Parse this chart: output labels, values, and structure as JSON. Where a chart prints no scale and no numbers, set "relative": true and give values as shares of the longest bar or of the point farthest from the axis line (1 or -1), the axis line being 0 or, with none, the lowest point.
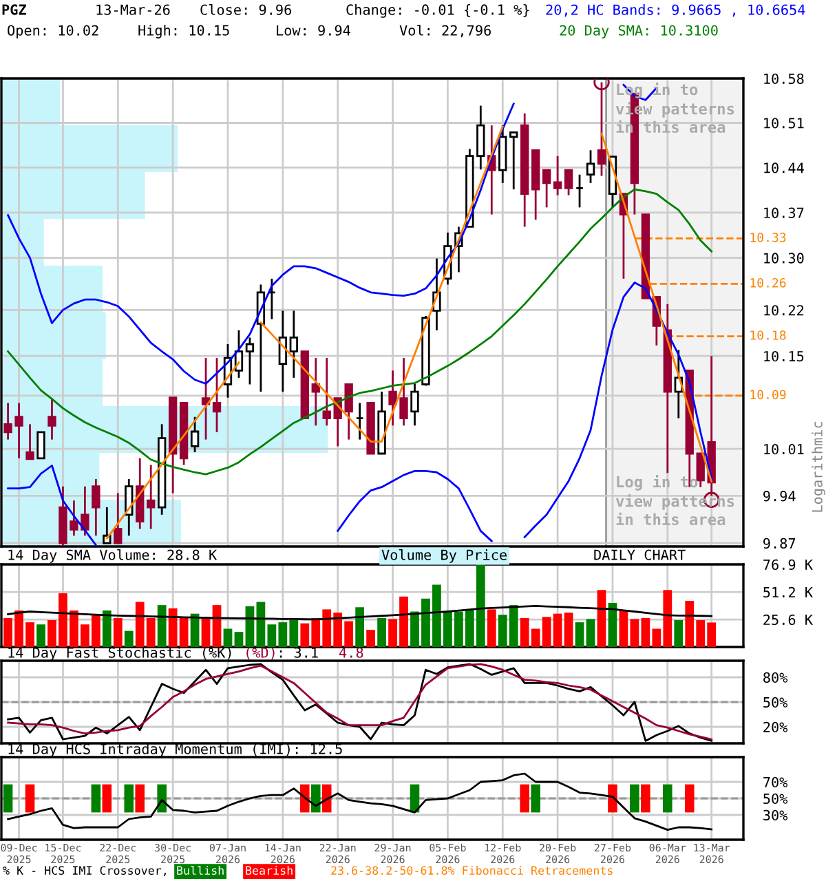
{
  "chart_data": [
    {
      "type": "candlestick",
      "title": "PGZ",
      "ylabel": "Logarithmic",
      "log": true,
      "grid": true,
      "tick_labels": "y",
      "ylim": [
        9.865,
        10.58
      ],
      "yticks": [
        9.87,
        9.94,
        10.01,
        {
          "value": 10.09,
          "label": null
        },
        10.15,
        10.22,
        {
          "value": 10.3,
          "label": "10.30"
        },
        10.37,
        10.44,
        10.51,
        10.58
      ],
      "categories": [
        null,
        null,
        null,
        null,
        null,
        null,
        null,
        null,
        null,
        null,
        null,
        null,
        null,
        null,
        null,
        null,
        null,
        null,
        null,
        null,
        null,
        null,
        null,
        null,
        null,
        null,
        null,
        null,
        null,
        null,
        null,
        null,
        null,
        null,
        null,
        null,
        null,
        null,
        null,
        null,
        null,
        null,
        null,
        null,
        null,
        null,
        null,
        null,
        null,
        null,
        null,
        null,
        null,
        null,
        null,
        null,
        null,
        null,
        null,
        null,
        null,
        null,
        null,
        null,
        null
      ],
      "ohlc": [
        [
          10.047,
          10.079,
          10.024,
          10.035
        ],
        [
          10.058,
          10.079,
          9.996,
          10.045
        ],
        [
          10.005,
          10.047,
          9.995,
          9.995
        ],
        [
          9.996,
          10.035,
          9.996,
          10.035
        ],
        [
          10.058,
          10.086,
          10.024,
          10.045
        ],
        [
          9.923,
          9.954,
          9.866,
          9.87
        ],
        [
          9.902,
          9.933,
          9.881,
          9.89
        ],
        [
          9.912,
          9.954,
          9.881,
          9.89
        ],
        [
          9.954,
          9.965,
          9.881,
          9.923
        ],
        [
          9.87,
          9.923,
          9.87,
          9.881
        ],
        [
          9.891,
          9.944,
          9.87,
          9.87
        ],
        [
          9.912,
          9.965,
          9.881,
          9.954
        ],
        [
          9.954,
          9.996,
          9.891,
          9.902
        ],
        [
          9.933,
          9.986,
          9.891,
          9.923
        ],
        [
          9.923,
          10.047,
          9.912,
          10.026
        ],
        [
          10.087,
          10.087,
          9.944,
          10.003
        ],
        [
          10.079,
          10.079,
          9.986,
          9.996
        ],
        [
          10.014,
          10.058,
          10.005,
          10.036
        ],
        [
          10.086,
          10.147,
          10.024,
          10.077
        ],
        [
          10.079,
          10.147,
          10.035,
          10.066
        ],
        [
          10.107,
          10.168,
          10.087,
          10.147
        ],
        [
          10.128,
          10.189,
          10.117,
          10.157
        ],
        [
          10.157,
          10.178,
          10.107,
          10.168
        ],
        [
          10.199,
          10.259,
          10.096,
          10.247
        ],
        [
          10.247,
          10.268,
          10.206,
          10.247
        ],
        [
          10.138,
          10.219,
          10.096,
          10.178
        ],
        [
          10.157,
          10.219,
          10.117,
          10.178
        ],
        [
          10.157,
          10.157,
          10.056,
          10.056
        ],
        [
          10.107,
          10.147,
          10.045,
          10.096
        ],
        [
          10.066,
          10.147,
          10.045,
          10.056
        ],
        [
          10.086,
          10.086,
          10.014,
          10.056
        ],
        [
          10.107,
          10.107,
          10.024,
          10.066
        ],
        [
          10.056,
          10.079,
          10.024,
          10.056
        ],
        [
          10.079,
          10.079,
          10.003,
          10.003
        ],
        [
          10.003,
          10.096,
          10.003,
          10.066
        ],
        [
          10.096,
          10.128,
          10.045,
          10.077
        ],
        [
          10.086,
          10.147,
          10.045,
          10.056
        ],
        [
          10.066,
          10.108,
          10.045,
          10.096
        ],
        [
          10.107,
          10.211,
          10.105,
          10.208
        ],
        [
          10.219,
          10.299,
          10.189,
          10.247
        ],
        [
          10.268,
          10.339,
          10.259,
          10.318
        ],
        [
          10.318,
          10.348,
          10.278,
          10.338
        ],
        [
          10.348,
          10.469,
          10.348,
          10.458
        ],
        [
          10.458,
          10.537,
          10.437,
          10.506
        ],
        [
          10.458,
          10.506,
          10.367,
          10.436
        ],
        [
          10.436,
          10.506,
          10.416,
          10.488
        ],
        [
          10.488,
          10.495,
          10.406,
          10.495
        ],
        [
          10.506,
          10.525,
          10.348,
          10.399
        ],
        [
          10.467,
          10.467,
          10.359,
          10.406
        ],
        [
          10.436,
          10.436,
          10.378,
          10.416
        ],
        [
          10.417,
          10.458,
          10.397,
          10.408
        ],
        [
          10.436,
          10.436,
          10.397,
          10.408
        ],
        [
          10.408,
          10.429,
          10.378,
          10.408
        ],
        [
          10.429,
          10.467,
          10.416,
          10.446
        ],
        [
          10.467,
          10.574,
          10.427,
          10.446
        ],
        [
          10.399,
          10.457,
          10.378,
          10.457
        ],
        [
          10.399,
          10.399,
          10.268,
          10.367
        ],
        [
          10.556,
          10.556,
          10.367,
          10.416
        ],
        [
          10.367,
          10.367,
          10.238,
          10.238
        ],
        [
          10.24,
          10.24,
          10.166,
          10.196
        ],
        [
          10.189,
          10.229,
          9.974,
          10.096
        ],
        [
          10.096,
          10.159,
          10.056,
          10.117
        ],
        [
          10.128,
          10.128,
          9.953,
          10.003
        ],
        [
          10.003,
          10.003,
          9.953,
          9.963
        ],
        [
          10.02,
          10.15,
          9.94,
          9.96
        ]
      ],
      "colors": [
        "#990033",
        "#990033",
        "#990033",
        "#000000",
        "#990033",
        "#990033",
        "#990033",
        "#990033",
        "#990033",
        "#000000",
        "#990033",
        "#000000",
        "#990033",
        "#990033",
        "#000000",
        "#990033",
        "#990033",
        "#000000",
        "#990033",
        "#990033",
        "#000000",
        "#000000",
        "#000000",
        "#000000",
        "#000000",
        "#000000",
        "#000000",
        "#990033",
        "#990033",
        "#990033",
        "#990033",
        "#990033",
        "#000000",
        "#990033",
        "#000000",
        "#990033",
        "#990033",
        "#000000",
        "#000000",
        "#000000",
        "#000000",
        "#000000",
        "#000000",
        "#000000",
        "#990033",
        "#000000",
        "#000000",
        "#990033",
        "#990033",
        "#990033",
        "#990033",
        "#990033",
        "#000000",
        "#000000",
        "#990033",
        "#000000",
        "#990033",
        "#990033",
        "#990033",
        "#990033",
        "#990033",
        "#000000",
        "#990033",
        "#990033",
        "#990033"
      ],
      "series": [
        {
          "name": "20,2 HC Bands: 9.9665 , 10.6654",
          "type": "line",
          "color": "#0000ff",
          "values": [
            10.366,
            10.33,
            10.3,
            10.245,
            10.2,
            10.22,
            10.23,
            10.236,
            10.236,
            10.232,
            10.226,
            10.21,
            10.19,
            10.17,
            10.157,
            10.145,
            10.127,
            10.114,
            10.108,
            10.124,
            10.14,
            10.16,
            10.183,
            10.22,
            10.257,
            10.274,
            10.287,
            10.287,
            10.284,
            10.277,
            10.27,
            10.263,
            10.254,
            10.247,
            10.245,
            10.243,
            10.242,
            10.245,
            10.253,
            10.273,
            10.3,
            10.322,
            10.36,
            10.405,
            10.455,
            10.5,
            10.54,
            null,
            null,
            null,
            null,
            null,
            null,
            null,
            null,
            null,
            10.57,
            10.552,
            10.546,
            10.565,
            null,
            null,
            null,
            null,
            null
          ]
        },
        {
          "type": "line",
          "color": "#0000ff",
          "values": [
            9.951,
            9.951,
            9.953,
            9.973,
            9.985,
            9.933,
            9.91,
            9.889,
            9.867,
            null,
            null,
            null,
            null,
            null,
            null,
            null,
            null,
            null,
            null,
            null,
            null,
            null,
            null,
            null,
            null,
            null,
            null,
            null,
            null,
            null,
            9.888,
            9.911,
            9.932,
            9.948,
            9.953,
            9.962,
            9.971,
            9.977,
            9.977,
            9.975,
            9.965,
            9.951,
            9.92,
            9.888,
            9.873,
            null,
            null,
            9.879,
            9.896,
            9.912,
            9.937,
            9.962,
            9.996,
            10.038,
            10.12,
            10.19,
            10.24,
            10.262,
            10.253,
            10.22,
            10.185,
            10.152,
            10.11,
            10.035,
            9.966
          ]
        },
        {
          "name": "20 Day SMA: 10.3100",
          "type": "line",
          "color": "#008000",
          "values": [
            10.157,
            10.137,
            10.117,
            10.098,
            10.085,
            10.071,
            10.06,
            10.05,
            10.042,
            10.035,
            10.028,
            10.019,
            10.007,
            9.994,
            9.988,
            9.983,
            9.979,
            9.975,
            9.972,
            9.977,
            9.982,
            9.99,
            10.002,
            10.013,
            10.025,
            10.037,
            10.049,
            10.057,
            10.065,
            10.074,
            10.08,
            10.088,
            10.094,
            10.097,
            10.101,
            10.105,
            10.107,
            10.109,
            10.117,
            10.126,
            10.135,
            10.145,
            10.156,
            10.168,
            10.18,
            10.196,
            10.212,
            10.229,
            10.248,
            10.267,
            10.287,
            10.306,
            10.325,
            10.345,
            10.361,
            10.378,
            10.394,
            10.406,
            10.403,
            10.399,
            10.386,
            10.374,
            10.352,
            10.327,
            10.31
          ]
        },
        {
          "type": "line",
          "color": "#ff8000",
          "values": [
            null,
            null,
            null,
            null,
            null,
            null,
            null,
            null,
            null,
            9.877,
            9.899,
            9.921,
            9.943,
            9.965,
            9.987,
            10.009,
            10.03,
            10.052,
            10.074,
            10.096,
            10.118,
            10.14,
            null,
            10.201,
            10.183,
            10.165,
            10.147,
            10.129,
            10.111,
            10.093,
            10.075,
            10.057,
            10.039,
            10.021,
            10.021,
            10.065,
            10.109,
            10.153,
            10.197,
            10.241,
            10.284,
            10.328,
            10.372,
            10.416,
            10.46,
            10.504,
            null,
            null,
            null,
            null,
            null,
            null,
            null,
            null,
            10.493,
            10.44,
            10.387,
            10.333,
            10.28,
            10.227,
            10.174,
            10.121,
            10.067,
            10.014,
            9.961
          ]
        },
        {
          "type": "scatter",
          "marker": "circle",
          "color": "#990033",
          "values": [
            null,
            null,
            null,
            null,
            null,
            null,
            null,
            null,
            null,
            null,
            null,
            null,
            null,
            null,
            null,
            null,
            null,
            null,
            null,
            null,
            null,
            null,
            null,
            null,
            null,
            null,
            null,
            null,
            null,
            null,
            null,
            null,
            null,
            null,
            null,
            null,
            null,
            null,
            null,
            null,
            null,
            null,
            null,
            null,
            null,
            null,
            null,
            null,
            null,
            null,
            null,
            null,
            null,
            null,
            10.574,
            null,
            null,
            null,
            null,
            null,
            null,
            null,
            null,
            null,
            9.934
          ]
        }
      ],
      "ref_lines": [
        {
          "axis": "y",
          "value": 10.33,
          "label": "10.33",
          "color": "#ff8000",
          "line_style": "dashed"
        },
        {
          "axis": "y",
          "value": 10.26,
          "label": "10.26",
          "color": "#ff8000",
          "line_style": "dashed"
        },
        {
          "axis": "y",
          "value": 10.18,
          "label": "10.18",
          "color": "#ff8000",
          "line_style": "dashed"
        },
        {
          "axis": "y",
          "value": 10.09,
          "label": "10.09",
          "color": "#ff8000",
          "line_style": "dashed"
        }
      ],
      "annotations": [
        "13-Mar-26",
        "Close: 9.96",
        "Change: -0.01 {-0.1 %}",
        "Open: 10.02",
        "High: 10.15",
        "Low: 9.94",
        "Vol: 22,796",
        "Log in to\nview patterns\nin this area",
        "Log in to\nview patterns\nin this area"
      ]
    },
    {
      "type": "bar",
      "grid": true,
      "tick_labels": "y",
      "ylim": [
        0,
        76.9
      ],
      "yticks": [
        {
          "value": 25.6,
          "label": "25.6 K"
        },
        {
          "value": 51.2,
          "label": "51.2 K"
        },
        {
          "value": 76.9,
          "label": "76.9 K"
        }
      ],
      "categories": [
        null,
        null,
        null,
        null,
        null,
        null,
        null,
        null,
        null,
        null,
        null,
        null,
        null,
        null,
        null,
        null,
        null,
        null,
        null,
        null,
        null,
        null,
        null,
        null,
        null,
        null,
        null,
        null,
        null,
        null,
        null,
        null,
        null,
        null,
        null,
        null,
        null,
        null,
        null,
        null,
        null,
        null,
        null,
        null,
        null,
        null,
        null,
        null,
        null,
        null,
        null,
        null,
        null,
        null,
        null,
        null,
        null,
        null,
        null,
        null,
        null,
        null,
        null,
        null,
        null
      ],
      "series": [
        {
          "type": "bar",
          "values": [
            27,
            34,
            23,
            21,
            25,
            50,
            34,
            21,
            30,
            34,
            27,
            15,
            42,
            27,
            39,
            36,
            27,
            31,
            28,
            39,
            17,
            14,
            38,
            42,
            21,
            23,
            25,
            22,
            27,
            35,
            32,
            24,
            37,
            16,
            27,
            26,
            47,
            33,
            45,
            58,
            33,
            33,
            35,
            76.9,
            35,
            30,
            39,
            27,
            17,
            28,
            31,
            32,
            23,
            26,
            53,
            41,
            34,
            26,
            27,
            17,
            53,
            25,
            43,
            25,
            22.8
          ],
          "colors": [
            "#ff0000",
            "#ff0000",
            "#ff0000",
            "#008000",
            "#ff0000",
            "#ff0000",
            "#ff0000",
            "#ff0000",
            "#ff0000",
            "#008000",
            "#ff0000",
            "#008000",
            "#ff0000",
            "#ff0000",
            "#008000",
            "#ff0000",
            "#ff0000",
            "#008000",
            "#ff0000",
            "#ff0000",
            "#008000",
            "#008000",
            "#008000",
            "#008000",
            "#008000",
            "#008000",
            "#008000",
            "#ff0000",
            "#ff0000",
            "#ff0000",
            "#ff0000",
            "#ff0000",
            "#008000",
            "#ff0000",
            "#008000",
            "#ff0000",
            "#ff0000",
            "#008000",
            "#008000",
            "#008000",
            "#008000",
            "#008000",
            "#008000",
            "#008000",
            "#ff0000",
            "#008000",
            "#008000",
            "#ff0000",
            "#ff0000",
            "#ff0000",
            "#ff0000",
            "#ff0000",
            "#008000",
            "#008000",
            "#ff0000",
            "#008000",
            "#ff0000",
            "#ff0000",
            "#ff0000",
            "#ff0000",
            "#ff0000",
            "#008000",
            "#ff0000",
            "#ff0000",
            "#ff0000"
          ]
        },
        {
          "name": "14 Day SMA Volume: 28.8 K",
          "type": "line",
          "color": "#000000",
          "values": [
            30.5,
            32,
            33,
            32.5,
            32,
            31.5,
            31,
            30.5,
            30,
            29.5,
            29.2,
            29,
            28.7,
            28.5,
            28.2,
            28,
            27.7,
            27.5,
            27.2,
            27,
            26.9,
            26.7,
            26.6,
            26.4,
            26.3,
            26.1,
            26,
            25.8,
            25.7,
            26.2,
            26.8,
            27.3,
            27.9,
            28.4,
            29,
            29.5,
            30.2,
            30.9,
            31.6,
            32.3,
            33,
            33.9,
            34.9,
            35.8,
            36.3,
            36.8,
            37.2,
            37.7,
            38.2,
            37.8,
            37.4,
            37,
            36.5,
            36.1,
            35.7,
            35.3,
            34.1,
            33,
            31.8,
            30.7,
            29.5,
            29.3,
            29.2,
            29,
            28.8
          ]
        }
      ],
      "annotations": [
        "DAILY CHART"
      ]
    },
    {
      "type": "line",
      "grid": true,
      "tick_labels": "y",
      "ylim": [
        0,
        100
      ],
      "yticks": [
        {
          "value": 20,
          "label": "20%"
        },
        {
          "value": 50,
          "label": "50%"
        },
        {
          "value": 80,
          "label": "80%"
        }
      ],
      "categories": [
        null,
        null,
        null,
        null,
        null,
        null,
        null,
        null,
        null,
        null,
        null,
        null,
        null,
        null,
        null,
        null,
        null,
        null,
        null,
        null,
        null,
        null,
        null,
        null,
        null,
        null,
        null,
        null,
        null,
        null,
        null,
        null,
        null,
        null,
        null,
        null,
        null,
        null,
        null,
        null,
        null,
        null,
        null,
        null,
        null,
        null,
        null,
        null,
        null,
        null,
        null,
        null,
        null,
        null,
        null,
        null,
        null,
        null,
        null,
        null,
        null,
        null,
        null,
        null,
        null
      ],
      "series": [
        {
          "name": "14 Day Fast Stochastic (%K)",
          "color": "#000000",
          "values": [
            29,
            31,
            13,
            28,
            31,
            5,
            7,
            9,
            19,
            12,
            22,
            32,
            16,
            44,
            72,
            66,
            61,
            75,
            89,
            72,
            91,
            93,
            95,
            96,
            86,
            77,
            58,
            40,
            47,
            36,
            25,
            22,
            20,
            5,
            25,
            23,
            22,
            34,
            89,
            84,
            92,
            94,
            96,
            90,
            83,
            87,
            91,
            73,
            73,
            73,
            70,
            66,
            63,
            68,
            57,
            46,
            34,
            50,
            3,
            10,
            15,
            21,
            12,
            7,
            3.1
          ]
        },
        {
          "name": "(%D)",
          "color": "#990033",
          "values": [
            25,
            24,
            23,
            23,
            22,
            19,
            15,
            12,
            13,
            15,
            16,
            19,
            21,
            33,
            44,
            56,
            63,
            71,
            78,
            81,
            84,
            87,
            91,
            94,
            87,
            80,
            73,
            61,
            49,
            37,
            30,
            22,
            22,
            22,
            22,
            27,
            31,
            51,
            71,
            81,
            91,
            93,
            95,
            96,
            93,
            89,
            83,
            77,
            76,
            74,
            73,
            70,
            68,
            65,
            58,
            51,
            44,
            37,
            30,
            22,
            19,
            15,
            11,
            8,
            4.8
          ]
        }
      ],
      "ref_lines": [
        {
          "axis": "y",
          "value": 50,
          "color": "#999999",
          "line_style": "dashed"
        }
      ],
      "annotations": [
        ": 3.1",
        "4.8"
      ]
    },
    {
      "type": "line",
      "grid": true,
      "ylim": [
        0,
        100
      ],
      "yticks": [
        {
          "value": 30,
          "label": "30%"
        },
        {
          "value": 50,
          "label": "50%"
        },
        {
          "value": 70,
          "label": "70%"
        }
      ],
      "categories": [
        null,
        "09-Dec\n2025",
        null,
        null,
        null,
        "15-Dec\n2025",
        null,
        null,
        null,
        null,
        "22-Dec\n2025",
        null,
        null,
        null,
        null,
        "30-Dec\n2025",
        null,
        null,
        null,
        null,
        "07-Jan\n2026",
        null,
        null,
        null,
        null,
        "14-Jan\n2026",
        null,
        null,
        null,
        null,
        "22-Jan\n2026",
        null,
        null,
        null,
        null,
        "29-Jan\n2026",
        null,
        null,
        null,
        null,
        "05-Feb\n2026",
        null,
        null,
        null,
        null,
        "12-Feb\n2026",
        null,
        null,
        null,
        null,
        "20-Feb\n2026",
        null,
        null,
        null,
        null,
        "27-Feb\n2026",
        null,
        null,
        null,
        null,
        "06-Mar\n2026",
        null,
        null,
        null,
        "13-Mar\n2026"
      ],
      "series": [
        {
          "name": "14 Day HCS Intraday Momentum (IMI): 12.5",
          "color": "#000000",
          "values": [
            25,
            28,
            31,
            35,
            38,
            18,
            14,
            15,
            15,
            15,
            15,
            25,
            27,
            28,
            48,
            36,
            35,
            33,
            34,
            35,
            41,
            46,
            50,
            53,
            54,
            54,
            62,
            51,
            41,
            49,
            56,
            48,
            46,
            44,
            43,
            41,
            37,
            33,
            48,
            49,
            50,
            55,
            60,
            70,
            71,
            72,
            78,
            80,
            70,
            70,
            70,
            64,
            57,
            56,
            54,
            52,
            39,
            26,
            22,
            17,
            12,
            15,
            15,
            14,
            12.5
          ]
        },
        {
          "name": "Bullish",
          "type": "bar",
          "color": "#008000",
          "base": [
            33,
            null,
            null,
            null,
            null,
            null,
            null,
            null,
            33,
            null,
            null,
            33,
            null,
            null,
            33,
            null,
            null,
            null,
            null,
            null,
            null,
            null,
            null,
            null,
            null,
            null,
            null,
            null,
            33,
            null,
            null,
            null,
            null,
            null,
            null,
            null,
            null,
            33,
            null,
            null,
            null,
            null,
            null,
            null,
            null,
            null,
            null,
            null,
            33,
            null,
            null,
            null,
            null,
            null,
            null,
            null,
            null,
            33,
            null,
            null,
            33,
            null,
            null,
            null,
            null
          ],
          "values": [
            34,
            null,
            null,
            null,
            null,
            null,
            null,
            null,
            34,
            null,
            null,
            34,
            null,
            null,
            34,
            null,
            null,
            null,
            null,
            null,
            null,
            null,
            null,
            null,
            null,
            null,
            null,
            null,
            34,
            null,
            null,
            null,
            null,
            null,
            null,
            null,
            null,
            34,
            null,
            null,
            null,
            null,
            null,
            null,
            null,
            null,
            null,
            null,
            34,
            null,
            null,
            null,
            null,
            null,
            null,
            null,
            null,
            34,
            null,
            null,
            34,
            null,
            null,
            null,
            null
          ]
        },
        {
          "name": "Bearish",
          "type": "bar",
          "color": "#ff0000",
          "base": [
            null,
            null,
            33,
            null,
            null,
            null,
            null,
            null,
            null,
            33,
            null,
            null,
            33,
            null,
            null,
            null,
            null,
            null,
            null,
            null,
            null,
            null,
            null,
            null,
            null,
            null,
            null,
            33,
            null,
            33,
            null,
            null,
            null,
            null,
            null,
            null,
            null,
            null,
            null,
            null,
            null,
            null,
            null,
            null,
            null,
            null,
            null,
            33,
            null,
            null,
            null,
            null,
            null,
            null,
            null,
            33,
            null,
            null,
            33,
            null,
            null,
            null,
            33,
            null,
            null
          ],
          "values": [
            null,
            null,
            34,
            null,
            null,
            null,
            null,
            null,
            null,
            34,
            null,
            null,
            34,
            null,
            null,
            null,
            null,
            null,
            null,
            null,
            null,
            null,
            null,
            null,
            null,
            null,
            null,
            34,
            null,
            34,
            null,
            null,
            null,
            null,
            null,
            null,
            null,
            null,
            null,
            null,
            null,
            null,
            null,
            null,
            null,
            null,
            null,
            34,
            null,
            null,
            null,
            null,
            null,
            null,
            null,
            34,
            null,
            null,
            34,
            null,
            null,
            null,
            34,
            null,
            null
          ]
        }
      ],
      "ref_lines": [
        {
          "axis": "y",
          "value": 50,
          "color": "#999999",
          "line_style": "dashed"
        }
      ],
      "annotations": [
        "% K - HCS IMI Crossover,",
        "23.6-38.2-50-61.8% Fibonacci Retracements"
      ]
    },
    {
      "type": "bar",
      "orientation": "horizontal",
      "relative": true,
      "tick_labels": false,
      "categories": [
        null,
        null,
        null,
        null,
        null,
        null,
        null,
        null,
        null,
        null
      ],
      "series": [
        {
          "name": "Volume By Price",
          "color": "#c8f4fc",
          "values": [
            0.18,
            0.54,
            0.44,
            0.13,
            0.31,
            0.32,
            0.31,
            1,
            0.3,
            0.55
          ]
        }
      ]
    }
  ]
}
